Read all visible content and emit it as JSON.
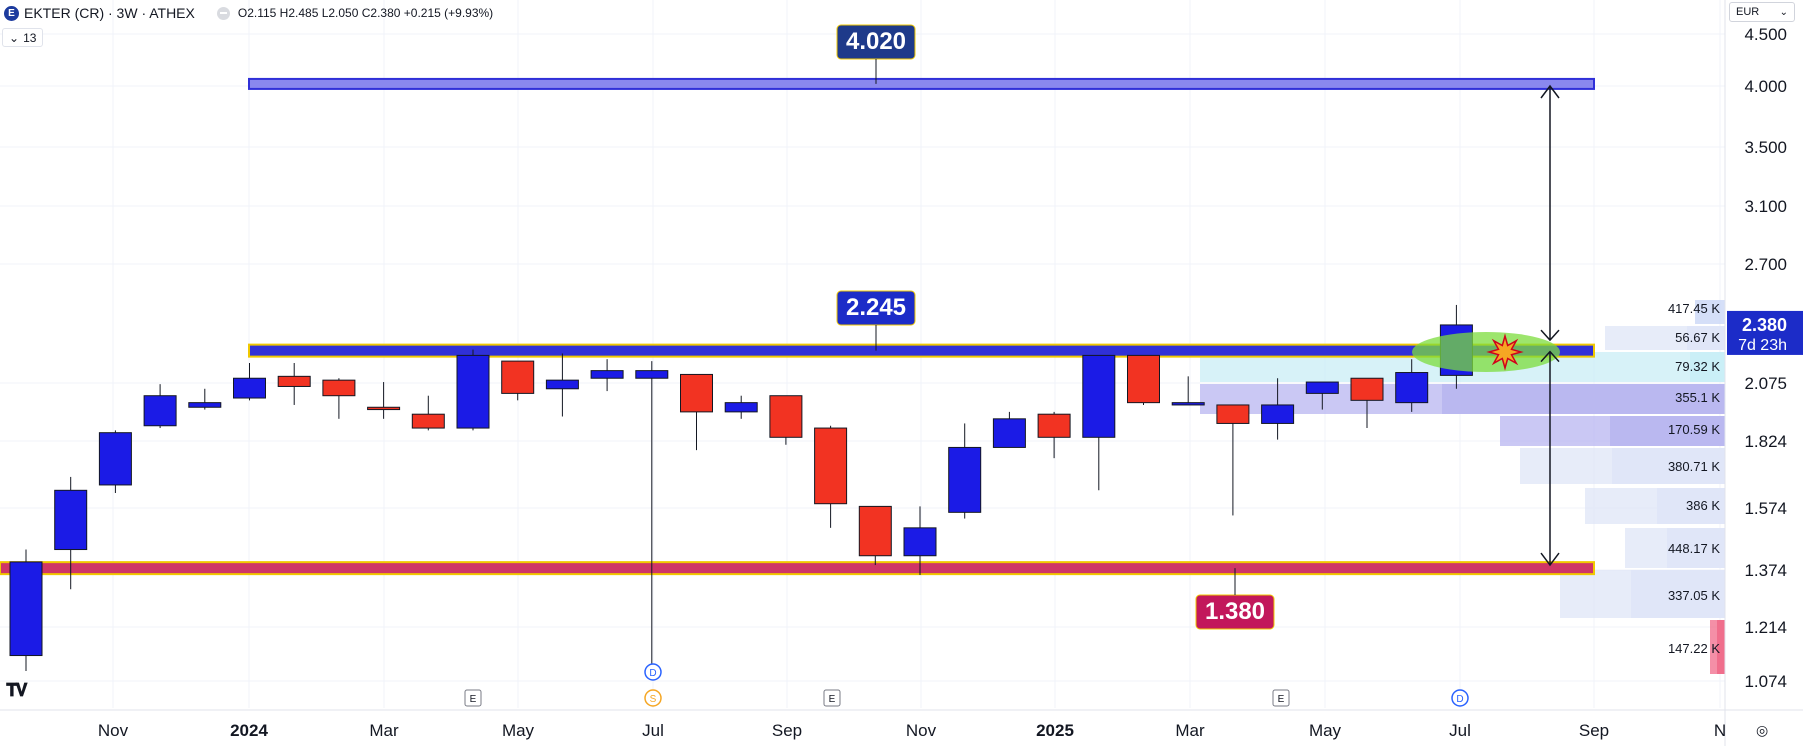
{
  "header": {
    "logo_letter": "E",
    "symbol": "EKTER (CR) · 3W · ATHEX",
    "ohlc": "O2.115 H2.485 L2.050 C2.380",
    "change": "+0.215 (+9.93%)",
    "indicators_count": "13",
    "indicators_chevron": "⌄"
  },
  "currency": {
    "label": "EUR",
    "chevron": "⌄"
  },
  "colors": {
    "up": "#1b1be6",
    "down": "#f23322",
    "band_blue": "#3030d8",
    "band_red": "#cf3566",
    "band_border": "#f0c800",
    "label_blue": "#1e3a8a",
    "label_navy": "#1c2cc8",
    "label_red": "#c2185b",
    "vp_light": "#dfe6f7",
    "vp_purple": "#b8b6f0",
    "vp_cyan": "#c9eef6",
    "green_ellipse": "#7cdc3c"
  },
  "chart_data": {
    "type": "candlestick",
    "timeframe": "3W",
    "x_ticks": [
      "Nov",
      "2024",
      "Mar",
      "May",
      "Jul",
      "Sep",
      "Nov",
      "2025",
      "Mar",
      "May",
      "Jul",
      "Sep",
      "N"
    ],
    "y_ticks": [
      "4.500",
      "4.000",
      "3.500",
      "3.100",
      "2.700",
      "2.075",
      "1.824",
      "1.574",
      "1.374",
      "1.214",
      "1.074"
    ],
    "candles": [
      {
        "o": 1.14,
        "h": 1.44,
        "l": 1.1,
        "c": 1.4
      },
      {
        "o": 1.44,
        "h": 1.69,
        "l": 1.32,
        "c": 1.64
      },
      {
        "o": 1.66,
        "h": 1.87,
        "l": 1.63,
        "c": 1.86
      },
      {
        "o": 1.89,
        "h": 2.07,
        "l": 1.88,
        "c": 2.02
      },
      {
        "o": 1.97,
        "h": 2.05,
        "l": 1.96,
        "c": 1.99
      },
      {
        "o": 2.01,
        "h": 2.18,
        "l": 2.0,
        "c": 2.1
      },
      {
        "o": 2.11,
        "h": 2.18,
        "l": 1.98,
        "c": 2.06
      },
      {
        "o": 2.09,
        "h": 2.1,
        "l": 1.92,
        "c": 2.02
      },
      {
        "o": 1.97,
        "h": 2.08,
        "l": 1.92,
        "c": 1.96
      },
      {
        "o": 1.94,
        "h": 2.02,
        "l": 1.87,
        "c": 1.88
      },
      {
        "o": 1.88,
        "h": 2.25,
        "l": 1.87,
        "c": 2.22
      },
      {
        "o": 2.19,
        "h": 2.18,
        "l": 2.0,
        "c": 2.03
      },
      {
        "o": 2.05,
        "h": 2.23,
        "l": 1.93,
        "c": 2.09
      },
      {
        "o": 2.1,
        "h": 2.2,
        "l": 2.04,
        "c": 2.14
      },
      {
        "o": 2.1,
        "h": 2.19,
        "l": 1.1,
        "c": 2.14
      },
      {
        "o": 2.12,
        "h": 2.12,
        "l": 1.79,
        "c": 1.95
      },
      {
        "o": 1.95,
        "h": 2.02,
        "l": 1.92,
        "c": 1.99
      },
      {
        "o": 2.02,
        "h": 2.02,
        "l": 1.81,
        "c": 1.84
      },
      {
        "o": 1.88,
        "h": 1.89,
        "l": 1.51,
        "c": 1.59
      },
      {
        "o": 1.58,
        "h": 1.58,
        "l": 1.39,
        "c": 1.42
      },
      {
        "o": 1.42,
        "h": 1.58,
        "l": 1.36,
        "c": 1.51
      },
      {
        "o": 1.56,
        "h": 1.9,
        "l": 1.54,
        "c": 1.8
      },
      {
        "o": 1.8,
        "h": 1.95,
        "l": 1.8,
        "c": 1.92
      },
      {
        "o": 1.94,
        "h": 1.95,
        "l": 1.76,
        "c": 1.84
      },
      {
        "o": 1.84,
        "h": 2.22,
        "l": 1.64,
        "c": 2.22
      },
      {
        "o": 2.22,
        "h": 2.22,
        "l": 1.98,
        "c": 1.99
      },
      {
        "o": 1.98,
        "h": 2.11,
        "l": 1.98,
        "c": 1.99
      },
      {
        "o": 1.98,
        "h": 1.98,
        "l": 1.55,
        "c": 1.9
      },
      {
        "o": 1.9,
        "h": 2.1,
        "l": 1.83,
        "c": 1.98
      },
      {
        "o": 2.03,
        "h": 2.08,
        "l": 1.96,
        "c": 2.08
      },
      {
        "o": 2.1,
        "h": 2.1,
        "l": 1.88,
        "c": 2.0
      },
      {
        "o": 1.99,
        "h": 2.2,
        "l": 1.95,
        "c": 2.13
      },
      {
        "o": 2.115,
        "h": 2.485,
        "l": 2.05,
        "c": 2.38
      }
    ],
    "levels": [
      {
        "value": 4.02,
        "label": "4.020",
        "color": "blue"
      },
      {
        "value": 2.245,
        "label": "2.245",
        "color": "navy"
      },
      {
        "value": 1.38,
        "label": "1.380",
        "color": "red"
      }
    ],
    "price_label": {
      "value": 2.38,
      "text": "2.380",
      "countdown": "7d 23h"
    },
    "volume_profile": [
      "417.45 K",
      "56.67 K",
      "79.32 K",
      "355.1 K",
      "170.59 K",
      "380.71 K",
      "386 K",
      "448.17 K",
      "337.05 K",
      "147.22 K"
    ],
    "events": [
      {
        "type": "E",
        "month": "Apr 2024"
      },
      {
        "type": "D",
        "month": "Jul 2024"
      },
      {
        "type": "S",
        "month": "Jul 2024"
      },
      {
        "type": "E",
        "month": "Sep 2024"
      },
      {
        "type": "E",
        "month": "Apr 2025"
      },
      {
        "type": "D",
        "month": "Jul 2025"
      }
    ]
  }
}
